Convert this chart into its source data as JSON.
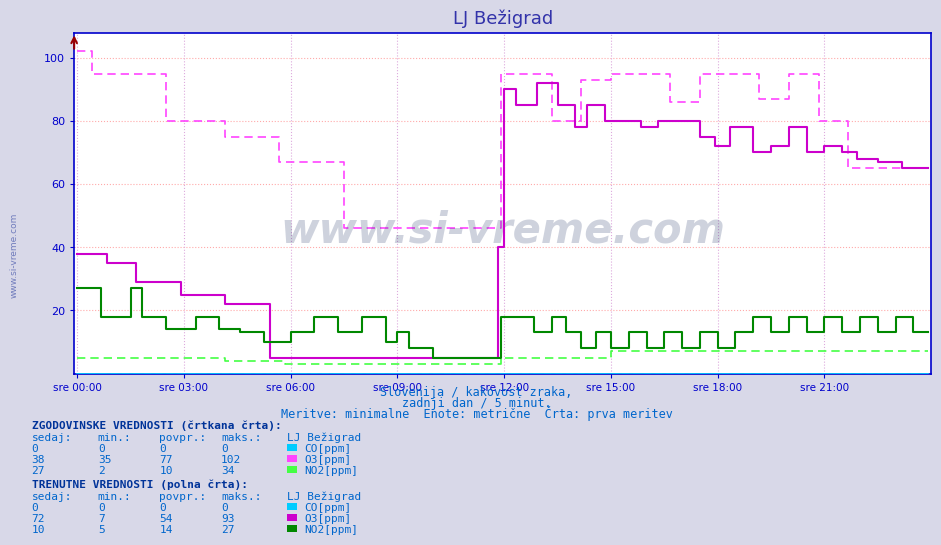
{
  "title": "LJ Bežigrad",
  "title_color": "#3333aa",
  "bg_color": "#d8d8e8",
  "plot_bg_color": "#ffffff",
  "ylim": [
    0,
    108
  ],
  "yticks": [
    20,
    40,
    60,
    80,
    100
  ],
  "x_labels": [
    "sre 00:00",
    "sre 03:00",
    "sre 06:00",
    "sre 09:00",
    "sre 12:00",
    "sre 15:00",
    "sre 18:00",
    "sre 21:00"
  ],
  "x_ticks_pos": [
    0,
    36,
    72,
    108,
    144,
    180,
    216,
    252
  ],
  "total_points": 288,
  "watermark": "www.si-vreme.com",
  "subtitle1": "Slovenija / kakovost zraka,",
  "subtitle2": "zadnji dan / 5 minut.",
  "subtitle3": "Meritve: minimalne  Enote: metrične  Črta: prva meritev",
  "colors": {
    "CO": "#00ccff",
    "O3_hist": "#ff44ff",
    "O3_curr": "#cc00cc",
    "NO2_hist": "#44ff44",
    "NO2_curr": "#008800"
  },
  "grid_color_h": "#ffaaaa",
  "grid_color_v": "#ddaadd",
  "axis_color": "#0000cc",
  "text_color": "#0066cc",
  "tick_color": "#0000cc",
  "note_hist": "ZGODOVINSKE VREDNOSTI (črtkana črta):",
  "note_curr": "TRENUTNE VREDNOSTI (polna črta):",
  "hist_table": {
    "CO": [
      0,
      0,
      0,
      0
    ],
    "O3": [
      38,
      35,
      77,
      102
    ],
    "NO2": [
      27,
      2,
      10,
      34
    ]
  },
  "curr_table": {
    "CO": [
      0,
      0,
      0,
      0
    ],
    "O3": [
      72,
      7,
      54,
      93
    ],
    "NO2": [
      10,
      5,
      14,
      27
    ]
  }
}
